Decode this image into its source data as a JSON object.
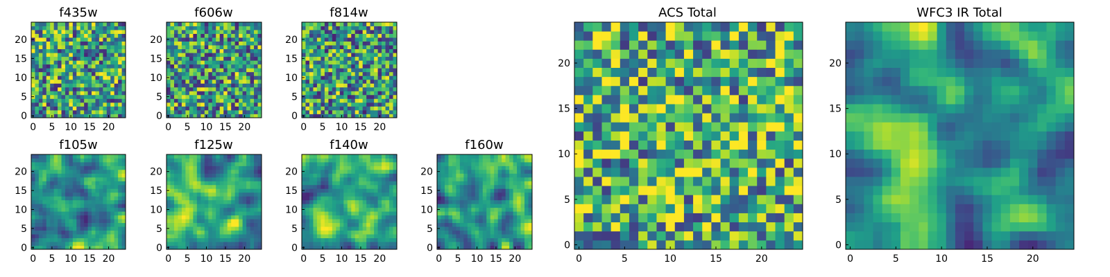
{
  "chart_data": [
    {
      "type": "heatmap",
      "title": "f435w",
      "xticks": [
        "0",
        "5",
        "10",
        "15",
        "20"
      ],
      "yticks": [
        "0",
        "5",
        "10",
        "15",
        "20"
      ],
      "grid_size": 25,
      "xlim": [
        0,
        24
      ],
      "ylim": [
        0,
        24
      ],
      "colormap": "viridis",
      "texture": "noise",
      "seed": 11,
      "mean": 0.6
    },
    {
      "type": "heatmap",
      "title": "f606w",
      "xticks": [
        "0",
        "5",
        "10",
        "15",
        "20"
      ],
      "yticks": [
        "0",
        "5",
        "10",
        "15",
        "20"
      ],
      "grid_size": 25,
      "xlim": [
        0,
        24
      ],
      "ylim": [
        0,
        24
      ],
      "colormap": "viridis",
      "texture": "noise",
      "seed": 23,
      "mean": 0.58
    },
    {
      "type": "heatmap",
      "title": "f814w",
      "xticks": [
        "0",
        "5",
        "10",
        "15",
        "20"
      ],
      "yticks": [
        "0",
        "5",
        "10",
        "15",
        "20"
      ],
      "grid_size": 25,
      "xlim": [
        0,
        24
      ],
      "ylim": [
        0,
        24
      ],
      "colormap": "viridis",
      "texture": "noise",
      "seed": 37,
      "mean": 0.57
    },
    {
      "type": "heatmap",
      "title": "f105w",
      "xticks": [
        "0",
        "5",
        "10",
        "15",
        "20"
      ],
      "yticks": [
        "0",
        "5",
        "10",
        "15",
        "20"
      ],
      "grid_size": 25,
      "xlim": [
        0,
        24
      ],
      "ylim": [
        0,
        24
      ],
      "colormap": "viridis",
      "texture": "smooth",
      "seed": 41,
      "mean": 0.6
    },
    {
      "type": "heatmap",
      "title": "f125w",
      "xticks": [
        "0",
        "5",
        "10",
        "15",
        "20"
      ],
      "yticks": [
        "0",
        "5",
        "10",
        "15",
        "20"
      ],
      "grid_size": 25,
      "xlim": [
        0,
        24
      ],
      "ylim": [
        0,
        24
      ],
      "colormap": "viridis",
      "texture": "smooth",
      "seed": 53,
      "mean": 0.65
    },
    {
      "type": "heatmap",
      "title": "f140w",
      "xticks": [
        "0",
        "5",
        "10",
        "15",
        "20"
      ],
      "yticks": [
        "0",
        "5",
        "10",
        "15",
        "20"
      ],
      "grid_size": 25,
      "xlim": [
        0,
        24
      ],
      "ylim": [
        0,
        24
      ],
      "colormap": "viridis",
      "texture": "smooth",
      "seed": 67,
      "mean": 0.6
    },
    {
      "type": "heatmap",
      "title": "f160w",
      "xticks": [
        "0",
        "5",
        "10",
        "15",
        "20"
      ],
      "yticks": [
        "0",
        "5",
        "10",
        "15",
        "20"
      ],
      "grid_size": 25,
      "xlim": [
        0,
        24
      ],
      "ylim": [
        0,
        24
      ],
      "colormap": "viridis",
      "texture": "smooth",
      "seed": 79,
      "mean": 0.55
    },
    {
      "type": "heatmap",
      "title": "ACS Total",
      "xticks": [
        "0",
        "5",
        "10",
        "15",
        "20"
      ],
      "yticks": [
        "0",
        "5",
        "10",
        "15",
        "20"
      ],
      "grid_size": 25,
      "xlim": [
        0,
        24
      ],
      "ylim": [
        0,
        24
      ],
      "colormap": "viridis",
      "texture": "noise",
      "seed": 97,
      "mean": 0.7
    },
    {
      "type": "heatmap",
      "title": "WFC3 IR Total",
      "xticks": [
        "0",
        "5",
        "10",
        "15",
        "20"
      ],
      "yticks": [
        "0",
        "5",
        "10",
        "15",
        "20"
      ],
      "grid_size": 25,
      "xlim": [
        0,
        24
      ],
      "ylim": [
        0,
        24
      ],
      "colormap": "viridis",
      "texture": "smooth",
      "seed": 101,
      "mean": 0.6
    }
  ]
}
